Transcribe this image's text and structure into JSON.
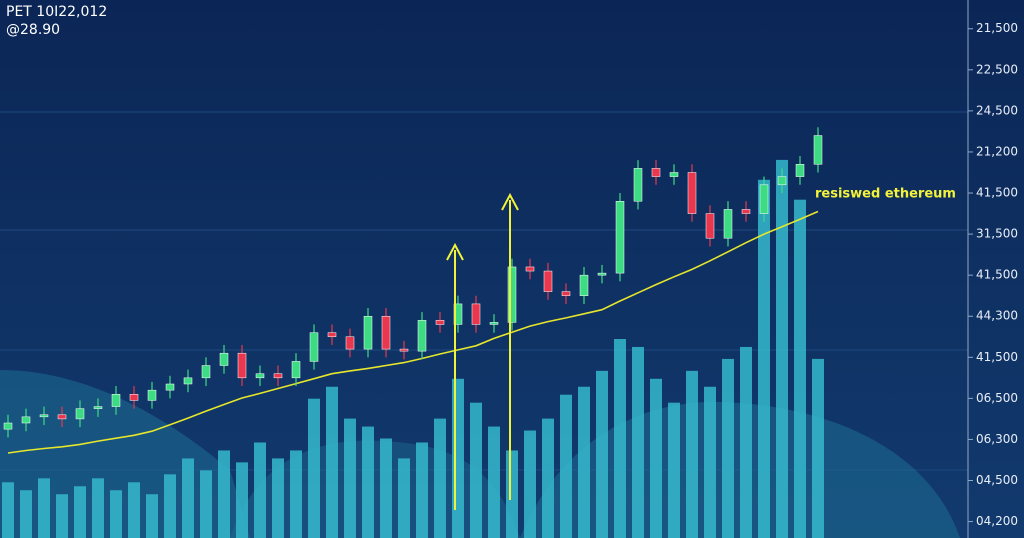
{
  "chart_data": {
    "type": "candlestick",
    "title": "PET 10I22,012",
    "subtitle": "@28.90",
    "annotation": "resiswed ethereum",
    "ylim": [
      -0.4,
      12.7
    ],
    "yticks": [
      {
        "value": 12,
        "label": "21,500"
      },
      {
        "value": 11,
        "label": "22,500"
      },
      {
        "value": 10,
        "label": "24,500"
      },
      {
        "value": 9,
        "label": "21,200"
      },
      {
        "value": 8,
        "label": "41,500"
      },
      {
        "value": 7,
        "label": "31,500"
      },
      {
        "value": 6,
        "label": "41,500"
      },
      {
        "value": 5,
        "label": "44,300"
      },
      {
        "value": 4,
        "label": "41,500"
      },
      {
        "value": 3,
        "label": "06,500"
      },
      {
        "value": 2,
        "label": "06,300"
      },
      {
        "value": 1,
        "label": "04,500"
      },
      {
        "value": 0,
        "label": "04,200"
      }
    ],
    "up_color": "#3ddc84",
    "down_color": "#e8384f",
    "open": [
      2.25,
      2.4,
      2.55,
      2.6,
      2.5,
      2.75,
      2.8,
      3.1,
      2.95,
      3.2,
      3.35,
      3.5,
      3.8,
      4.1,
      3.5,
      3.6,
      3.5,
      3.9,
      4.6,
      4.5,
      4.2,
      5.0,
      4.2,
      4.15,
      4.9,
      4.8,
      5.3,
      4.8,
      4.85,
      6.2,
      6.1,
      5.6,
      5.5,
      6.0,
      6.05,
      7.8,
      8.6,
      8.4,
      8.5,
      7.5,
      6.9,
      7.6,
      7.5,
      8.2,
      8.4,
      8.7
    ],
    "high": [
      2.6,
      2.75,
      2.8,
      2.8,
      2.95,
      3.0,
      3.3,
      3.3,
      3.4,
      3.55,
      3.7,
      4.0,
      4.3,
      4.3,
      3.8,
      3.8,
      4.1,
      4.8,
      4.8,
      4.7,
      5.2,
      5.2,
      4.4,
      5.1,
      5.1,
      5.5,
      5.5,
      5.05,
      6.4,
      6.4,
      6.3,
      5.8,
      6.2,
      6.25,
      8.0,
      8.8,
      8.8,
      8.7,
      8.7,
      7.7,
      7.8,
      7.8,
      8.4,
      8.6,
      8.9,
      9.6
    ],
    "low": [
      2.05,
      2.2,
      2.35,
      2.3,
      2.3,
      2.55,
      2.6,
      2.75,
      2.75,
      3.0,
      3.15,
      3.3,
      3.6,
      3.3,
      3.3,
      3.3,
      3.3,
      3.7,
      4.3,
      4.0,
      4.0,
      4.0,
      3.95,
      3.95,
      4.6,
      4.6,
      4.6,
      4.6,
      4.65,
      5.9,
      5.4,
      5.3,
      5.3,
      5.8,
      5.85,
      7.6,
      8.2,
      8.2,
      7.3,
      6.7,
      6.7,
      7.3,
      7.3,
      8.0,
      8.2,
      8.5
    ],
    "close": [
      2.4,
      2.55,
      2.6,
      2.5,
      2.75,
      2.8,
      3.1,
      2.95,
      3.2,
      3.35,
      3.5,
      3.8,
      4.1,
      3.5,
      3.6,
      3.5,
      3.9,
      4.6,
      4.5,
      4.2,
      5.0,
      4.2,
      4.15,
      4.9,
      4.8,
      5.3,
      4.8,
      4.85,
      6.2,
      6.1,
      5.6,
      5.5,
      6.0,
      6.05,
      7.8,
      8.6,
      8.4,
      8.5,
      7.5,
      6.9,
      7.6,
      7.5,
      8.2,
      8.4,
      8.7,
      9.4
    ],
    "moving_average": {
      "color": "#e6e62a",
      "values": [
        1.67,
        1.73,
        1.78,
        1.82,
        1.88,
        1.96,
        2.03,
        2.1,
        2.2,
        2.36,
        2.52,
        2.69,
        2.85,
        3.01,
        3.12,
        3.24,
        3.36,
        3.48,
        3.6,
        3.67,
        3.73,
        3.8,
        3.87,
        3.97,
        4.08,
        4.18,
        4.28,
        4.46,
        4.61,
        4.76,
        4.87,
        4.96,
        5.06,
        5.16,
        5.37,
        5.57,
        5.77,
        5.96,
        6.14,
        6.35,
        6.57,
        6.79,
        7.0,
        7.18,
        7.36,
        7.55
      ]
    },
    "volume": {
      "color": "#35b8cc",
      "y2lim": [
        0,
        100
      ],
      "values": [
        14,
        12,
        15,
        11,
        13,
        15,
        12,
        14,
        11,
        16,
        20,
        17,
        22,
        19,
        24,
        20,
        22,
        35,
        38,
        30,
        28,
        25,
        20,
        24,
        30,
        40,
        34,
        28,
        22,
        27,
        30,
        36,
        38,
        42,
        50,
        48,
        40,
        34,
        42,
        38,
        45,
        48,
        90,
        95,
        85,
        45
      ]
    }
  }
}
